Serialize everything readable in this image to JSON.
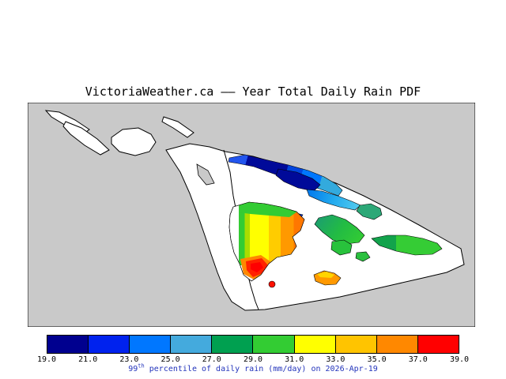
{
  "title": "VictoriaWeather.ca –– Year Total Daily Rain PDF",
  "map": {
    "land_color": "#c9c9c9",
    "water_color": "#ffffff",
    "outline_color": "#000000"
  },
  "colorbar": {
    "colors": [
      "#00008f",
      "#0022ee",
      "#0077ff",
      "#44aadd",
      "#00a050",
      "#33cc33",
      "#ffff00",
      "#ffc400",
      "#ff8800",
      "#ff0000"
    ],
    "ticks": [
      "19.0",
      "21.0",
      "23.0",
      "25.0",
      "27.0",
      "29.0",
      "31.0",
      "33.0",
      "35.0",
      "37.0",
      "39.0"
    ]
  },
  "caption": {
    "num": "99",
    "sup": "th",
    "rest": " percentile of daily rain (mm/day) on 2026-Apr-19",
    "color": "#2233bb"
  }
}
